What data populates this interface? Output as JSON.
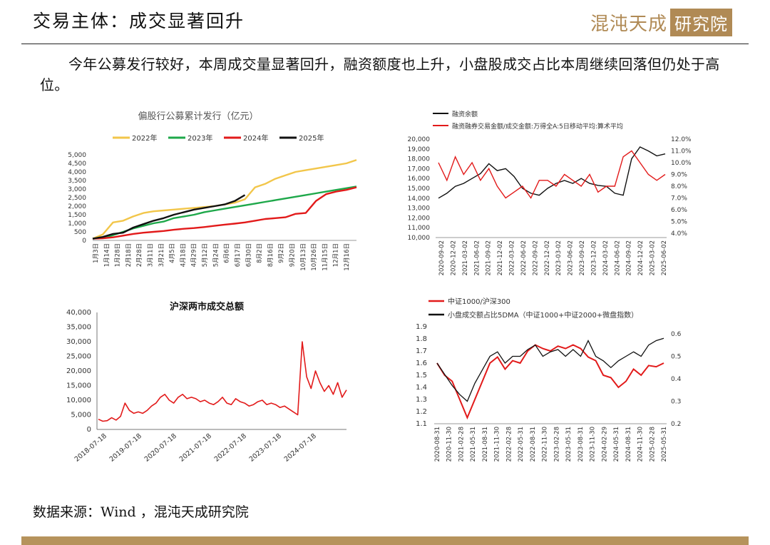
{
  "header": {
    "title": "交易主体：成交显著回升",
    "logo_text": "混沌天成",
    "logo_box": "研究院"
  },
  "paragraph": "今年公募发行较好，本周成交量显著回升，融资额度也上升，小盘股成交占比本周继续回落但仍处于高位。",
  "source": "数据来源：Wind ，混沌天成研究院",
  "colors": {
    "y2022": "#f2c64a",
    "y2023": "#1ea84a",
    "y2024": "#e21a1a",
    "y2025": "#111111",
    "gold": "#b6935c"
  },
  "chart_data": [
    {
      "id": "fund-issuance",
      "type": "line",
      "title": "偏股行公募累计发行（亿元）",
      "x_labels": [
        "1月3日",
        "1月14日",
        "1月28日",
        "2月18日",
        "2月28日",
        "3月11日",
        "3月21日",
        "4月5日",
        "4月18日",
        "4月29日",
        "5月12日",
        "5月24日",
        "6月6日",
        "6月17日",
        "6月30日",
        "8月2日",
        "8月16日",
        "9月2日",
        "9月20日",
        "10月13日",
        "10月26日",
        "11月15日",
        "12月1日",
        "12月16日"
      ],
      "ylim": [
        0,
        5000
      ],
      "y_ticks": [
        "0",
        "500",
        "1,000",
        "1,500",
        "2,000",
        "2,500",
        "3,000",
        "3,500",
        "4,000",
        "4,500",
        "5,000"
      ],
      "series": [
        {
          "name": "2022年",
          "color": "#f2c64a",
          "values": [
            100,
            350,
            1050,
            1150,
            1400,
            1600,
            1700,
            1750,
            1800,
            1850,
            1900,
            1950,
            2000,
            2100,
            2200,
            2400,
            3100,
            3300,
            3600,
            3800,
            4000,
            4100,
            4200,
            4300,
            4400,
            4500,
            4700
          ]
        },
        {
          "name": "2023年",
          "color": "#1ea84a",
          "values": [
            100,
            150,
            300,
            500,
            700,
            850,
            1000,
            1100,
            1300,
            1400,
            1500,
            1650,
            1750,
            1850,
            1950,
            2050,
            2150,
            2250,
            2350,
            2450,
            2550,
            2650,
            2750,
            2850,
            2950,
            3050,
            3150
          ]
        },
        {
          "name": "2024年",
          "color": "#e21a1a",
          "values": [
            100,
            120,
            180,
            280,
            380,
            450,
            500,
            550,
            620,
            680,
            720,
            780,
            850,
            920,
            980,
            1050,
            1150,
            1250,
            1300,
            1350,
            1550,
            1600,
            2300,
            2700,
            2850,
            2950,
            3100
          ]
        },
        {
          "name": "2025年",
          "color": "#111111",
          "values": [
            100,
            200,
            380,
            450,
            750,
            950,
            1150,
            1300,
            1500,
            1650,
            1800,
            1900,
            2000,
            2100,
            2300,
            2650
          ]
        }
      ]
    },
    {
      "id": "margin-balance",
      "type": "line",
      "title": "",
      "x_labels": [
        "2020-09-02",
        "2020-12-02",
        "2021-03-02",
        "2021-06-02",
        "2021-09-02",
        "2021-12-02",
        "2022-03-02",
        "2022-06-02",
        "2022-09-02",
        "2022-12-02",
        "2023-03-02",
        "2023-06-02",
        "2023-09-02",
        "2023-12-02",
        "2024-03-02",
        "2024-06-02",
        "2024-09-02",
        "2024-12-02",
        "2025-03-02",
        "2025-06-02"
      ],
      "y_left": {
        "range": [
          10000,
          20000
        ],
        "ticks": [
          "10,000",
          "11,000",
          "12,000",
          "13,000",
          "14,000",
          "15,000",
          "16,000",
          "17,000",
          "18,000",
          "19,000",
          "20,000"
        ]
      },
      "y_right": {
        "range": [
          4,
          12
        ],
        "ticks": [
          "4.0%",
          "5.0%",
          "6.0%",
          "7.0%",
          "8.0%",
          "9.0%",
          "10.0%",
          "11.0%",
          "12.0%"
        ]
      },
      "series": [
        {
          "name": "融资余额",
          "color": "#111111",
          "axis": "left",
          "values": [
            14000,
            14500,
            15200,
            15500,
            16000,
            16500,
            17500,
            16800,
            17000,
            16200,
            15000,
            14500,
            14300,
            15000,
            15500,
            15800,
            15500,
            16000,
            15500,
            15300,
            15200,
            14500,
            14300,
            18000,
            19200,
            18800,
            18300,
            18500
          ]
        },
        {
          "name": "融资融券交易金额/成交金额:万得全A:5日移动平均:算术平均",
          "color": "#e21a1a",
          "axis": "right",
          "values": [
            10.0,
            8.5,
            10.5,
            9.0,
            10.0,
            8.5,
            9.5,
            8.0,
            7.0,
            7.5,
            8.0,
            7.0,
            8.5,
            8.5,
            8.0,
            9.0,
            8.5,
            8.0,
            9.0,
            7.5,
            8.0,
            8.0,
            10.5,
            11.0,
            10.0,
            9.0,
            8.5,
            9.0
          ]
        }
      ]
    },
    {
      "id": "turnover",
      "type": "line",
      "title": "沪深两市成交总额",
      "x_labels": [
        "2018-07-18",
        "2019-07-18",
        "2020-07-18",
        "2021-07-18",
        "2022-07-18",
        "2023-07-18",
        "2024-07-18"
      ],
      "ylim": [
        0,
        40000
      ],
      "y_ticks": [
        "0",
        "5,000",
        "10,000",
        "15,000",
        "20,000",
        "25,000",
        "30,000",
        "35,000",
        "40,000"
      ],
      "series": [
        {
          "name": "沪深两市成交总额",
          "color": "#e21a1a",
          "values": [
            3500,
            2800,
            3000,
            4000,
            3200,
            4500,
            9000,
            6500,
            5500,
            6000,
            5500,
            6500,
            8000,
            9000,
            11000,
            12000,
            10000,
            9000,
            11000,
            12000,
            10500,
            11000,
            10500,
            9500,
            10000,
            9000,
            8500,
            9500,
            11000,
            9000,
            8500,
            10500,
            9500,
            9000,
            8000,
            8500,
            9500,
            10000,
            8500,
            9000,
            8500,
            7500,
            8000,
            7000,
            6000,
            5000,
            30000,
            18000,
            14000,
            20000,
            16000,
            13000,
            15000,
            12000,
            16000,
            11000,
            13500
          ]
        }
      ]
    },
    {
      "id": "small-cap",
      "type": "line",
      "title": "",
      "x_labels": [
        "2020-08-31",
        "2020-11-30",
        "2021-02-28",
        "2021-05-31",
        "2021-08-31",
        "2021-11-30",
        "2022-02-28",
        "2022-05-31",
        "2022-08-31",
        "2022-11-30",
        "2023-02-28",
        "2023-05-31",
        "2023-08-31",
        "2023-11-30",
        "2024-02-29",
        "2024-05-31",
        "2024-08-31",
        "2024-11-30",
        "2025-02-28",
        "2025-05-31"
      ],
      "y_left": {
        "range": [
          1.1,
          1.9
        ],
        "ticks": [
          "1.1",
          "1.2",
          "1.3",
          "1.4",
          "1.5",
          "1.6",
          "1.7",
          "1.8",
          "1.9"
        ]
      },
      "y_right": {
        "range": [
          0.2,
          0.6
        ],
        "ticks": [
          "0.2",
          "0.3",
          "0.4",
          "0.5",
          "0.6"
        ]
      },
      "series": [
        {
          "name": "中证1000/沪深300",
          "color": "#e21a1a",
          "axis": "left",
          "values": [
            1.6,
            1.5,
            1.45,
            1.3,
            1.15,
            1.3,
            1.45,
            1.6,
            1.65,
            1.55,
            1.62,
            1.6,
            1.7,
            1.75,
            1.72,
            1.7,
            1.74,
            1.72,
            1.75,
            1.72,
            1.65,
            1.62,
            1.5,
            1.48,
            1.4,
            1.45,
            1.55,
            1.5,
            1.58,
            1.57,
            1.6
          ]
        },
        {
          "name": "小盘成交额占比5DMA（中证1000+中证2000+微盘指数）",
          "color": "#111111",
          "axis": "right",
          "values": [
            0.47,
            0.42,
            0.37,
            0.33,
            0.3,
            0.38,
            0.44,
            0.5,
            0.52,
            0.47,
            0.5,
            0.5,
            0.53,
            0.55,
            0.5,
            0.52,
            0.53,
            0.5,
            0.53,
            0.5,
            0.57,
            0.5,
            0.48,
            0.45,
            0.48,
            0.5,
            0.52,
            0.5,
            0.55,
            0.57,
            0.58
          ]
        }
      ]
    }
  ]
}
